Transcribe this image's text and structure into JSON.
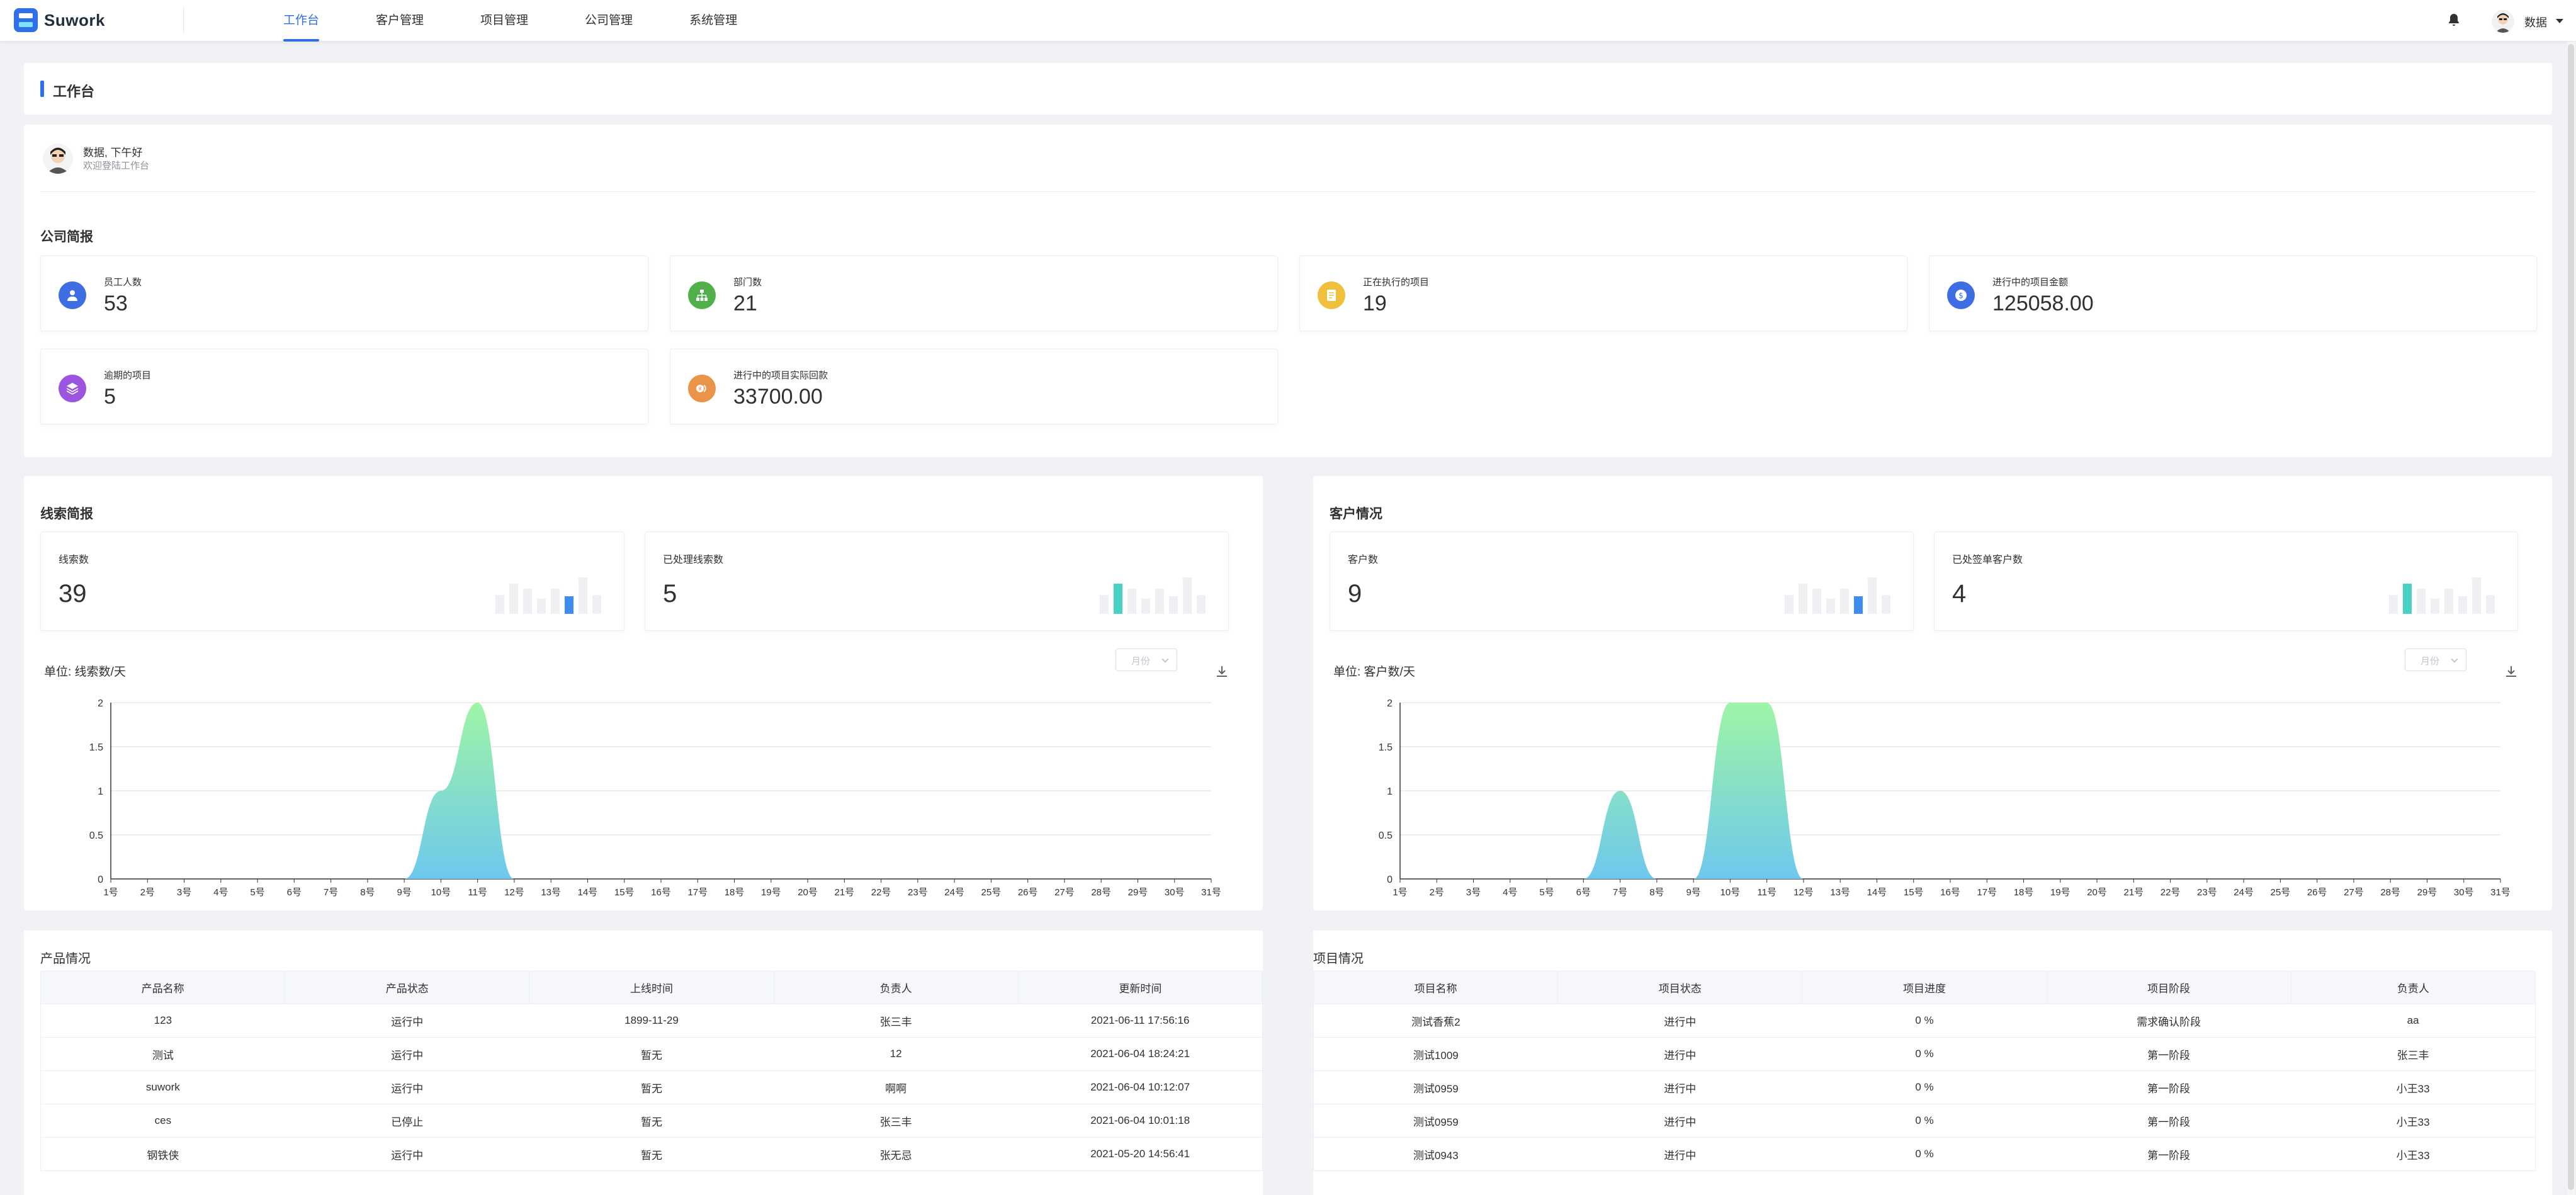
{
  "header": {
    "app_name": "Suwork",
    "nav": [
      {
        "label": "工作台",
        "active": true
      },
      {
        "label": "客户管理"
      },
      {
        "label": "项目管理"
      },
      {
        "label": "公司管理"
      },
      {
        "label": "系统管理"
      }
    ],
    "user_name": "数据"
  },
  "page_title": "工作台",
  "welcome": {
    "greeting": "数据, 下午好",
    "subtitle": "欢迎登陆工作台"
  },
  "company_report": {
    "title": "公司简报",
    "stats": [
      {
        "label": "员工人数",
        "value": "53",
        "icon": "user-icon",
        "color": "#3d6ee4"
      },
      {
        "label": "部门数",
        "value": "21",
        "icon": "org-chart-icon",
        "color": "#52b04a"
      },
      {
        "label": "正在执行的项目",
        "value": "19",
        "icon": "document-icon",
        "color": "#f0bf3c"
      },
      {
        "label": "进行中的项目金额",
        "value": "125058.00",
        "icon": "money-icon",
        "color": "#3d6ee4"
      },
      {
        "label": "逾期的项目",
        "value": "5",
        "icon": "layers-icon",
        "color": "#9b55e0"
      },
      {
        "label": "进行中的项目实际回款",
        "value": "33700.00",
        "icon": "coins-icon",
        "color": "#e99449"
      }
    ]
  },
  "leads": {
    "title": "线索简报",
    "cards": [
      {
        "label": "线索数",
        "value": "39"
      },
      {
        "label": "已处理线索数",
        "value": "5"
      }
    ],
    "unit": "单位: 线索数/天",
    "select_placeholder": "月份"
  },
  "customers": {
    "title": "客户情况",
    "cards": [
      {
        "label": "客户数",
        "value": "9"
      },
      {
        "label": "已处签单客户数",
        "value": "4"
      }
    ],
    "unit": "单位: 客户数/天",
    "select_placeholder": "月份"
  },
  "colors": {
    "accent": "#2f6fe8",
    "area_top": "#9ef5a6",
    "area_bottom": "#6ec8ec",
    "mini_blue": "#3f8cf0",
    "mini_teal": "#46d3c6"
  },
  "chart_data": [
    {
      "type": "area",
      "categories": [
        "1号",
        "2号",
        "3号",
        "4号",
        "5号",
        "6号",
        "7号",
        "8号",
        "9号",
        "10号",
        "11号",
        "12号",
        "13号",
        "14号",
        "15号",
        "16号",
        "17号",
        "18号",
        "19号",
        "20号",
        "21号",
        "22号",
        "23号",
        "24号",
        "25号",
        "26号",
        "27号",
        "28号",
        "29号",
        "30号",
        "31号"
      ],
      "values": [
        0,
        0,
        0,
        0,
        0,
        0,
        0,
        0,
        0,
        1,
        2,
        0,
        0,
        0,
        0,
        0,
        0,
        0,
        0,
        0,
        0,
        0,
        0,
        0,
        0,
        0,
        0,
        0,
        0,
        0,
        0
      ],
      "yticks": [
        "0",
        "0.5",
        "1",
        "1.5",
        "2"
      ],
      "ylim": [
        0,
        2
      ]
    },
    {
      "type": "area",
      "categories": [
        "1号",
        "2号",
        "3号",
        "4号",
        "5号",
        "6号",
        "7号",
        "8号",
        "9号",
        "10号",
        "11号",
        "12号",
        "13号",
        "14号",
        "15号",
        "16号",
        "17号",
        "18号",
        "19号",
        "20号",
        "21号",
        "22号",
        "23号",
        "24号",
        "25号",
        "26号",
        "27号",
        "28号",
        "29号",
        "30号",
        "31号"
      ],
      "values": [
        0,
        0,
        0,
        0,
        0,
        0,
        1,
        0,
        0,
        2,
        2,
        0,
        0,
        0,
        0,
        0,
        0,
        0,
        0,
        0,
        0,
        0,
        0,
        0,
        0,
        0,
        0,
        0,
        0,
        0,
        0
      ],
      "yticks": [
        "0",
        "0.5",
        "1",
        "1.5",
        "2"
      ],
      "ylim": [
        0,
        2
      ]
    }
  ],
  "products": {
    "title": "产品情况",
    "columns": [
      "产品名称",
      "产品状态",
      "上线时间",
      "负责人",
      "更新时间"
    ],
    "rows": [
      [
        "123",
        "运行中",
        "1899-11-29",
        "张三丰",
        "2021-06-11 17:56:16"
      ],
      [
        "测试",
        "运行中",
        "暂无",
        "12",
        "2021-06-04 18:24:21"
      ],
      [
        "suwork",
        "运行中",
        "暂无",
        "啊啊",
        "2021-06-04 10:12:07"
      ],
      [
        "ces",
        "已停止",
        "暂无",
        "张三丰",
        "2021-06-04 10:01:18"
      ],
      [
        "钢铁侠",
        "运行中",
        "暂无",
        "张无忌",
        "2021-05-20 14:56:41"
      ]
    ]
  },
  "projects": {
    "title": "项目情况",
    "columns": [
      "项目名称",
      "项目状态",
      "项目进度",
      "项目阶段",
      "负责人"
    ],
    "rows": [
      [
        "测试香蕉2",
        "进行中",
        "0 %",
        "需求确认阶段",
        "aa"
      ],
      [
        "测试1009",
        "进行中",
        "0 %",
        "第一阶段",
        "张三丰"
      ],
      [
        "测试0959",
        "进行中",
        "0 %",
        "第一阶段",
        "小王33"
      ],
      [
        "测试0959",
        "进行中",
        "0 %",
        "第一阶段",
        "小王33"
      ],
      [
        "测试0943",
        "进行中",
        "0 %",
        "第一阶段",
        "小王33"
      ]
    ]
  }
}
